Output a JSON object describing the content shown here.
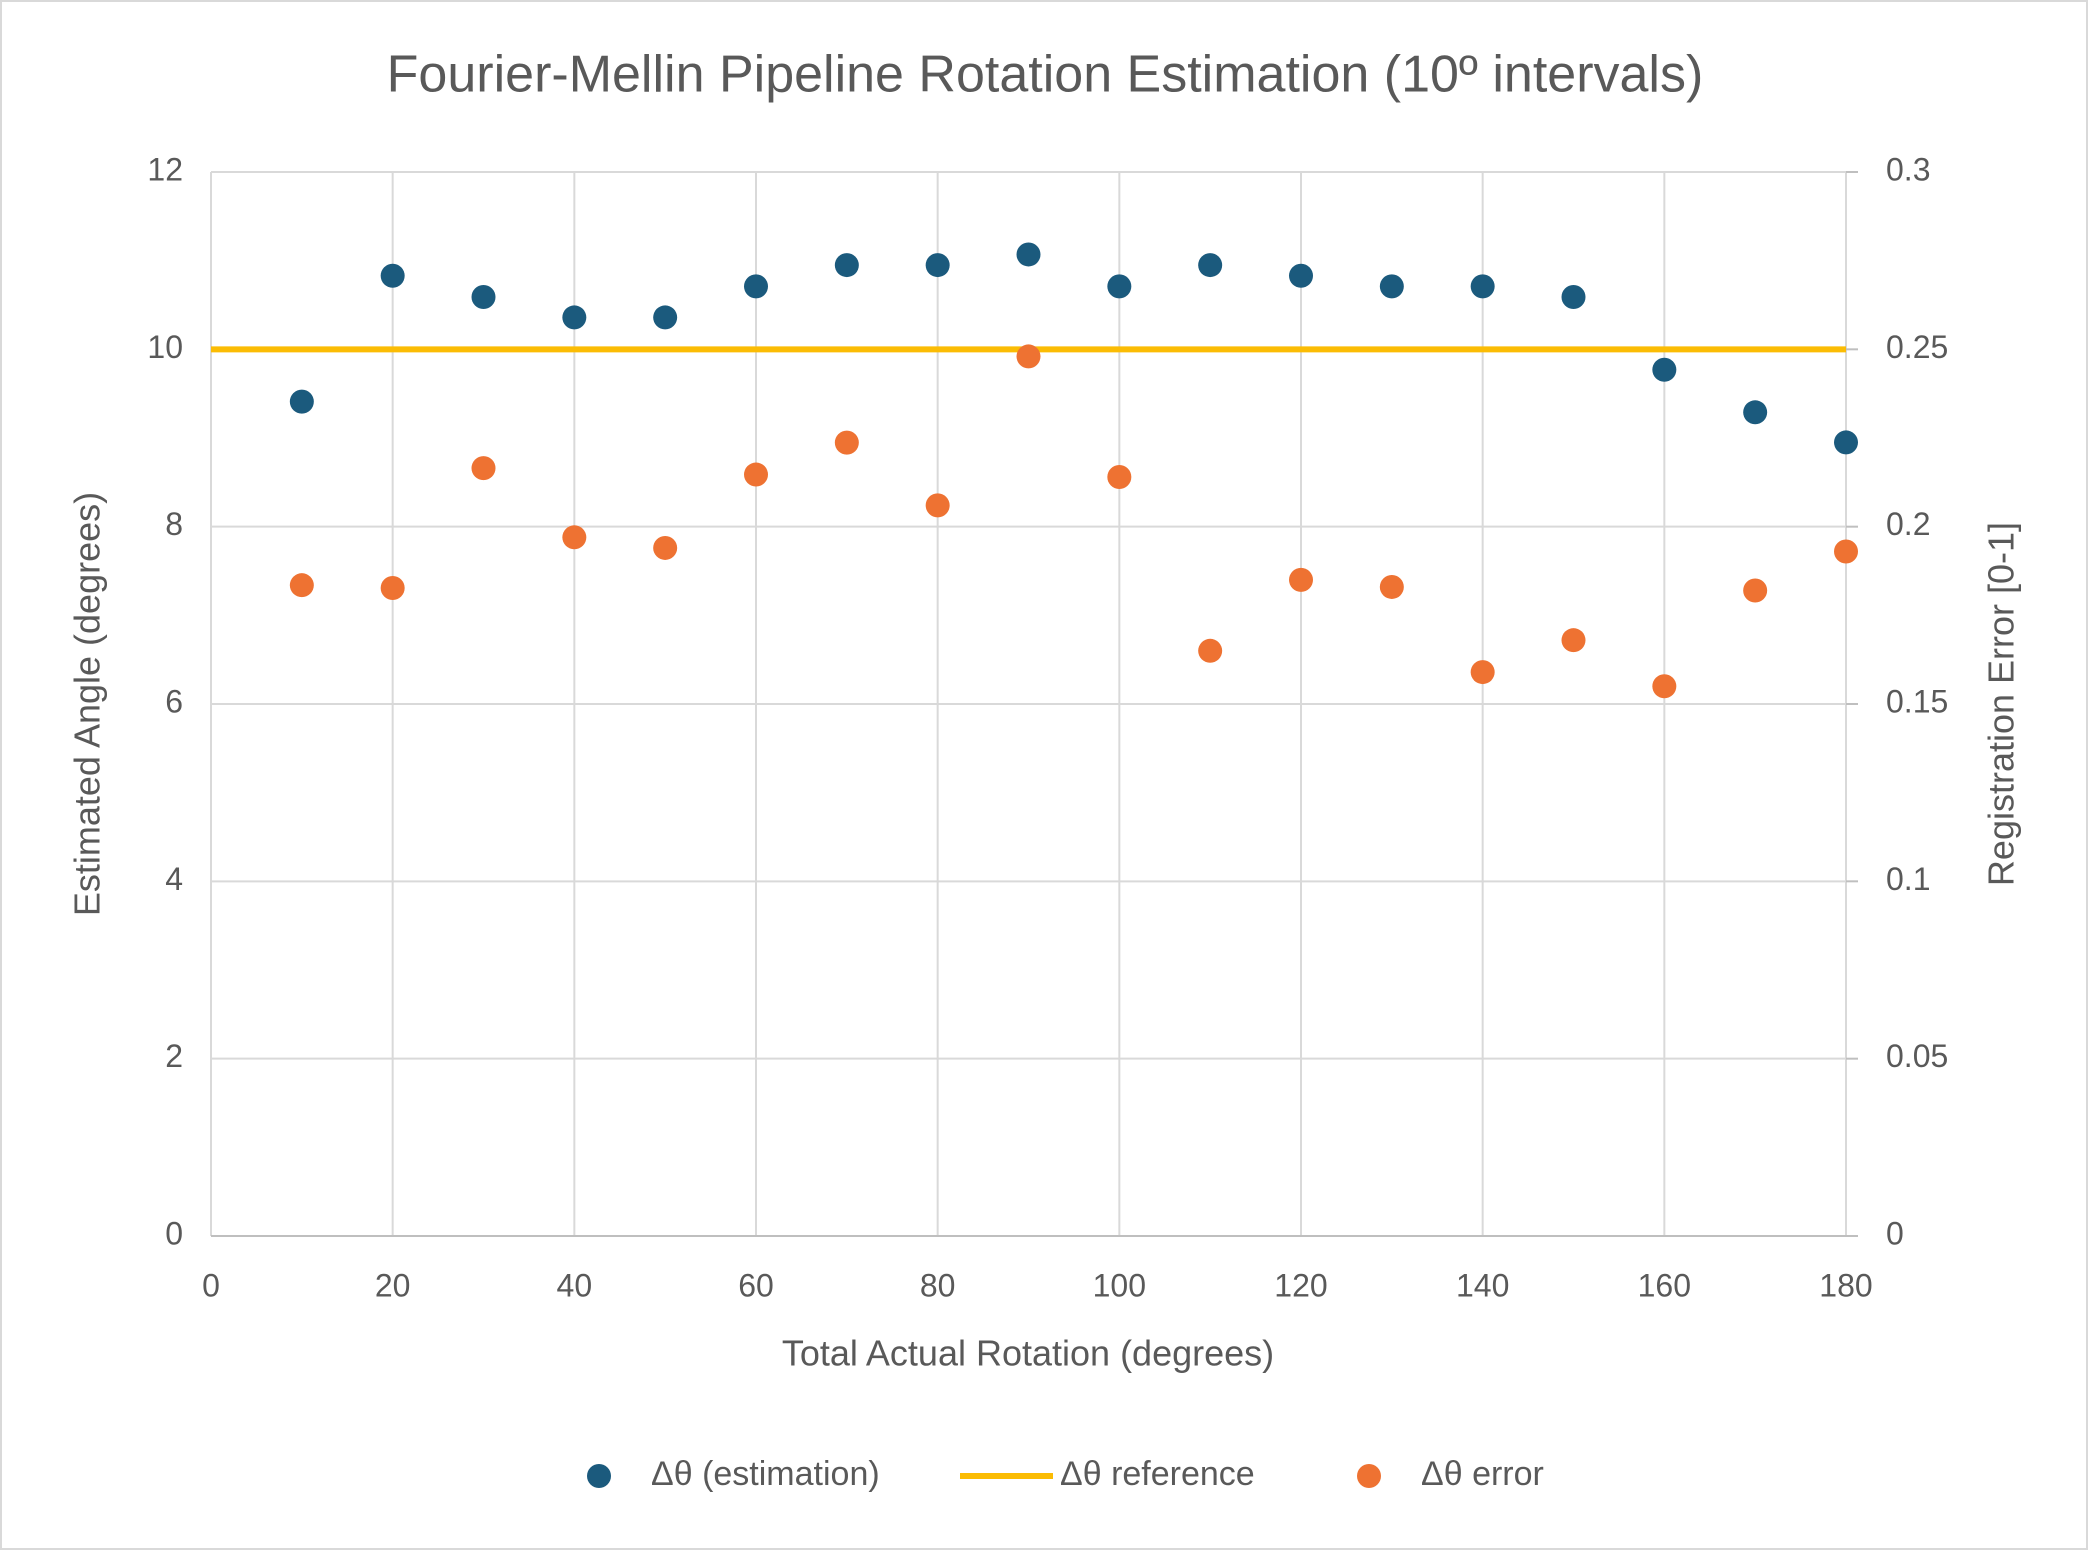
{
  "chart_data": {
    "type": "scatter",
    "title": "Fourier-Mellin Pipeline Rotation Estimation (10º intervals)",
    "x_label": "Total Actual Rotation (degrees)",
    "y_label": "Estimated Angle (degrees)",
    "y2_label": "Registration Error [0-1]",
    "xlim": [
      0,
      180
    ],
    "xticks": [
      0,
      20,
      40,
      60,
      80,
      100,
      120,
      140,
      160,
      180
    ],
    "ylim": [
      0,
      12
    ],
    "yticks": [
      0,
      2,
      4,
      6,
      8,
      10,
      12
    ],
    "y2lim": [
      0,
      0.3
    ],
    "y2ticks": [
      0,
      0.05,
      0.1,
      0.15,
      0.2,
      0.25,
      0.3
    ],
    "grid": true,
    "legend": "bottom",
    "series": [
      {
        "name": "Δθ (estimation)",
        "color": "#1b5a7d",
        "mode": "markers",
        "x": [
          10,
          20,
          30,
          40,
          50,
          60,
          70,
          80,
          90,
          100,
          110,
          120,
          130,
          140,
          150,
          160,
          170,
          180
        ],
        "values": [
          9.41,
          10.83,
          10.59,
          10.36,
          10.36,
          10.71,
          10.95,
          10.95,
          11.07,
          10.71,
          10.95,
          10.83,
          10.71,
          10.71,
          10.59,
          9.77,
          9.29,
          8.95
        ]
      },
      {
        "name": "Δθ reference",
        "color": "#fbbc04",
        "mode": "line",
        "x": [
          0,
          180
        ],
        "values": [
          10,
          10
        ]
      },
      {
        "name": "Δθ error",
        "color": "#ee7232",
        "mode": "markers",
        "axis": "y2",
        "x": [
          10,
          20,
          30,
          40,
          50,
          60,
          70,
          80,
          90,
          100,
          110,
          120,
          130,
          140,
          150,
          160,
          170,
          180
        ],
        "values": [
          0.1835,
          0.1827,
          0.2165,
          0.197,
          0.194,
          0.2147,
          0.2237,
          0.206,
          0.248,
          0.214,
          0.165,
          0.185,
          0.183,
          0.159,
          0.168,
          0.155,
          0.182,
          0.193
        ]
      }
    ]
  }
}
